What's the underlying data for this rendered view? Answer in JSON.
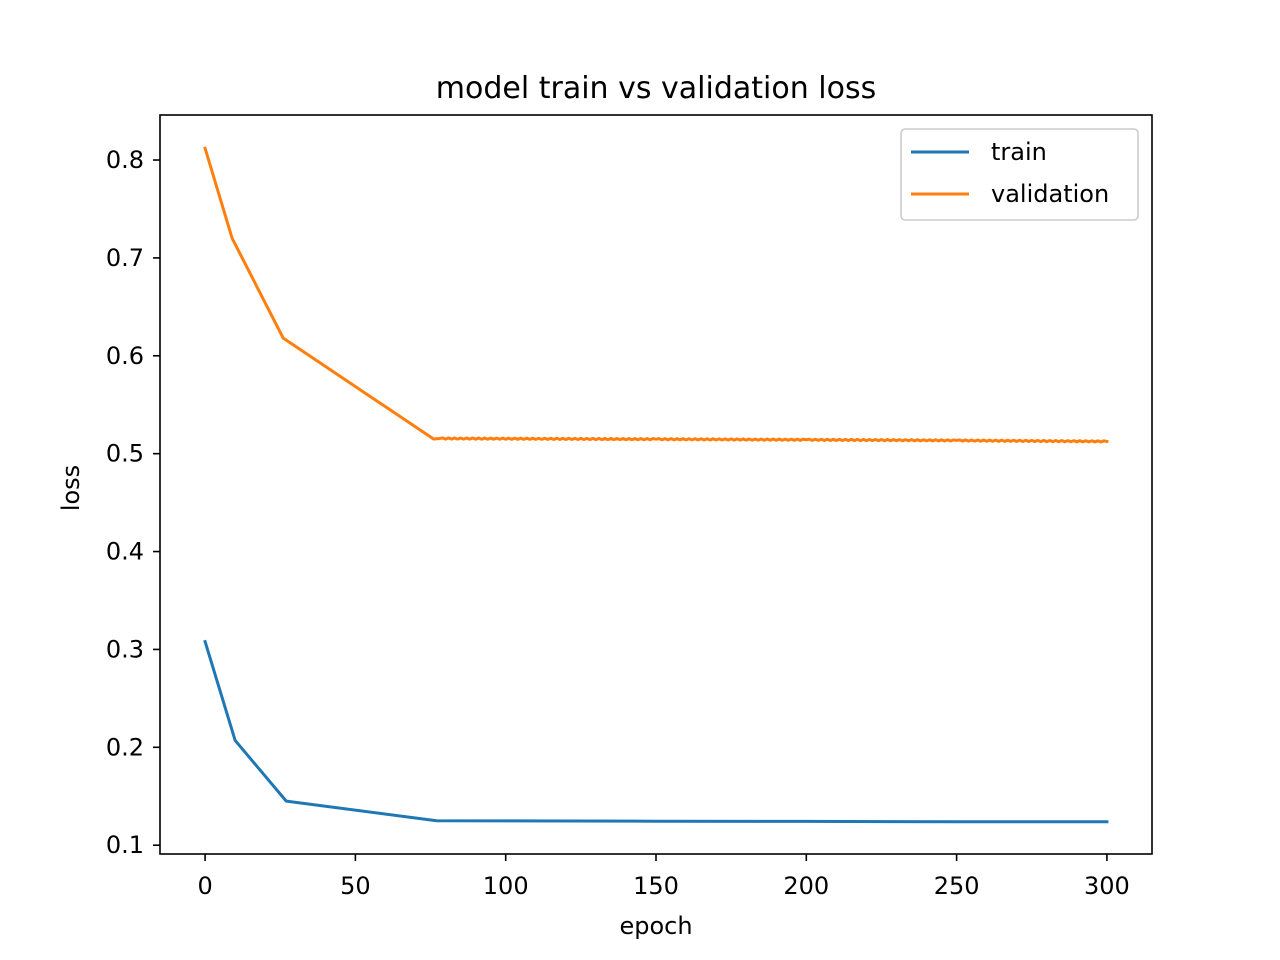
{
  "chart_data": {
    "type": "line",
    "title": "model train vs validation loss",
    "xlabel": "epoch",
    "ylabel": "loss",
    "xlim": [
      -15,
      315
    ],
    "ylim": [
      0.091,
      0.846
    ],
    "xticks": [
      0,
      50,
      100,
      150,
      200,
      250,
      300
    ],
    "yticks": [
      0.1,
      0.2,
      0.3,
      0.4,
      0.5,
      0.6,
      0.7,
      0.8
    ],
    "xtick_labels": [
      "0",
      "50",
      "100",
      "150",
      "200",
      "250",
      "300"
    ],
    "ytick_labels": [
      "0.1",
      "0.2",
      "0.3",
      "0.4",
      "0.5",
      "0.6",
      "0.7",
      "0.8"
    ],
    "grid": false,
    "legend_position": "top-right",
    "series": [
      {
        "name": "train",
        "color": "#1f77b4",
        "x": [
          0,
          10,
          27,
          77,
          150,
          200,
          250,
          300
        ],
        "y": [
          0.308,
          0.207,
          0.145,
          0.125,
          0.1245,
          0.1243,
          0.124,
          0.124
        ],
        "jitter": 0
      },
      {
        "name": "validation",
        "color": "#ff7f0e",
        "x": [
          0,
          9,
          26,
          76,
          78,
          150,
          200,
          250,
          300
        ],
        "y": [
          0.812,
          0.72,
          0.618,
          0.515,
          0.5155,
          0.5148,
          0.5142,
          0.5135,
          0.5125
        ],
        "jitter": 0.0012
      }
    ]
  }
}
